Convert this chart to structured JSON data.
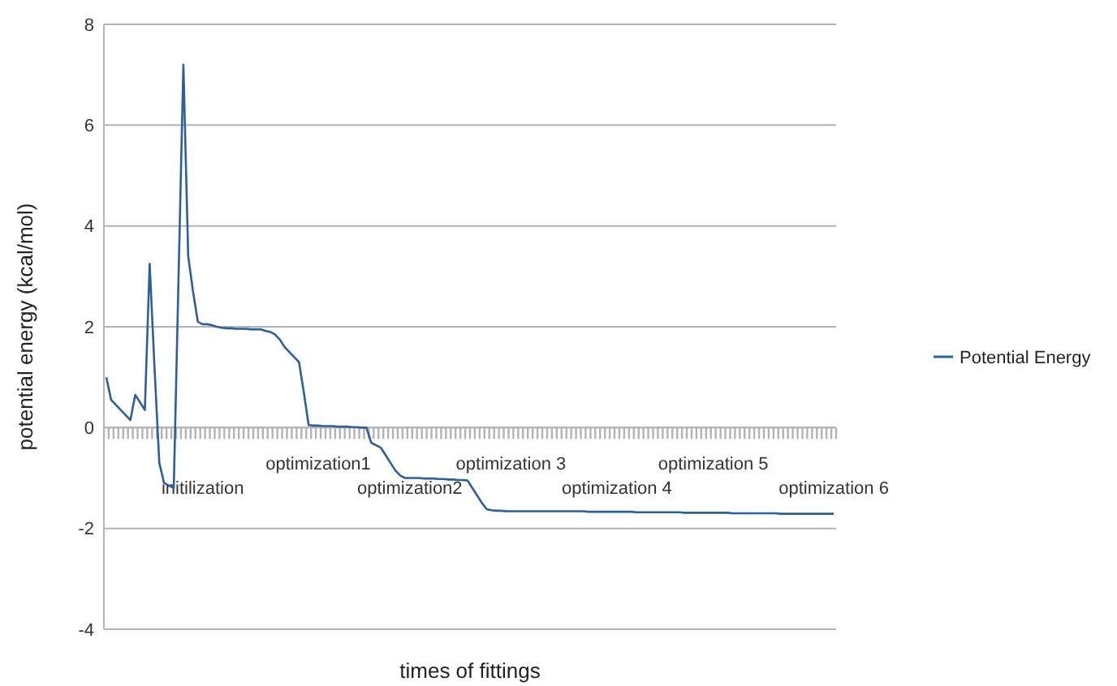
{
  "chart_data": {
    "type": "line",
    "xlabel": "times of fittings",
    "ylabel": "potential energy (kcal/mol)",
    "categories": [
      null,
      null,
      null,
      null,
      null,
      null,
      null,
      null,
      null,
      null,
      null,
      null,
      null,
      null,
      null,
      null,
      null,
      null,
      null,
      null,
      "initilization",
      null,
      null,
      null,
      null,
      null,
      null,
      null,
      null,
      null,
      null,
      null,
      null,
      null,
      null,
      null,
      null,
      null,
      null,
      null,
      null,
      null,
      null,
      null,
      "optimization1",
      null,
      null,
      null,
      null,
      null,
      null,
      null,
      null,
      null,
      null,
      null,
      null,
      null,
      null,
      null,
      null,
      null,
      null,
      "optimization2",
      null,
      null,
      null,
      null,
      null,
      null,
      null,
      null,
      null,
      null,
      null,
      null,
      null,
      null,
      null,
      null,
      null,
      null,
      null,
      null,
      "optimization 3",
      null,
      null,
      null,
      null,
      null,
      null,
      null,
      null,
      null,
      null,
      null,
      null,
      null,
      null,
      null,
      null,
      null,
      null,
      null,
      null,
      null,
      "optimization 4",
      null,
      null,
      null,
      null,
      null,
      null,
      null,
      null,
      null,
      null,
      null,
      null,
      null,
      null,
      null,
      null,
      null,
      null,
      null,
      "optimization 5",
      null,
      null,
      null,
      null,
      null,
      null,
      null,
      null,
      null,
      null,
      null,
      null,
      null,
      null,
      null,
      null,
      null,
      null,
      null,
      null,
      null,
      null,
      null,
      null,
      "optimization 6"
    ],
    "series": [
      {
        "name": "Potential Energy",
        "color": "#2b5f9e",
        "values": [
          1.0,
          0.55,
          0.45,
          0.35,
          0.25,
          0.15,
          0.65,
          0.5,
          0.35,
          3.25,
          1.2,
          -0.7,
          -1.1,
          -1.15,
          -1.2,
          3.0,
          7.2,
          3.4,
          2.7,
          2.1,
          2.05,
          2.05,
          2.03,
          2.0,
          1.98,
          1.97,
          1.97,
          1.96,
          1.96,
          1.96,
          1.95,
          1.95,
          1.95,
          1.92,
          1.9,
          1.85,
          1.75,
          1.6,
          1.5,
          1.4,
          1.3,
          0.7,
          0.05,
          0.04,
          0.04,
          0.03,
          0.03,
          0.03,
          0.02,
          0.02,
          0.02,
          0.01,
          0.01,
          0.0,
          0.0,
          -0.3,
          -0.35,
          -0.4,
          -0.55,
          -0.7,
          -0.85,
          -0.95,
          -1.0,
          -1.0,
          -1.0,
          -1.0,
          -1.01,
          -1.01,
          -1.01,
          -1.02,
          -1.02,
          -1.03,
          -1.03,
          -1.04,
          -1.04,
          -1.05,
          -1.2,
          -1.35,
          -1.5,
          -1.62,
          -1.64,
          -1.65,
          -1.65,
          -1.66,
          -1.66,
          -1.66,
          -1.66,
          -1.66,
          -1.66,
          -1.66,
          -1.66,
          -1.66,
          -1.66,
          -1.66,
          -1.66,
          -1.66,
          -1.66,
          -1.66,
          -1.66,
          -1.66,
          -1.67,
          -1.67,
          -1.67,
          -1.67,
          -1.67,
          -1.67,
          -1.67,
          -1.67,
          -1.67,
          -1.67,
          -1.68,
          -1.68,
          -1.68,
          -1.68,
          -1.68,
          -1.68,
          -1.68,
          -1.68,
          -1.68,
          -1.68,
          -1.69,
          -1.69,
          -1.69,
          -1.69,
          -1.69,
          -1.69,
          -1.69,
          -1.69,
          -1.69,
          -1.69,
          -1.7,
          -1.7,
          -1.7,
          -1.7,
          -1.7,
          -1.7,
          -1.7,
          -1.7,
          -1.7,
          -1.7,
          -1.71,
          -1.71,
          -1.71,
          -1.71,
          -1.71,
          -1.71,
          -1.71,
          -1.71,
          -1.71,
          -1.71,
          -1.71,
          -1.71
        ]
      }
    ],
    "ylim": [
      -4,
      8
    ],
    "yticks": [
      -4,
      -2,
      0,
      2,
      4,
      6,
      8
    ],
    "grid": "y",
    "legend": "right",
    "marker": "none",
    "line_style": "solid"
  }
}
